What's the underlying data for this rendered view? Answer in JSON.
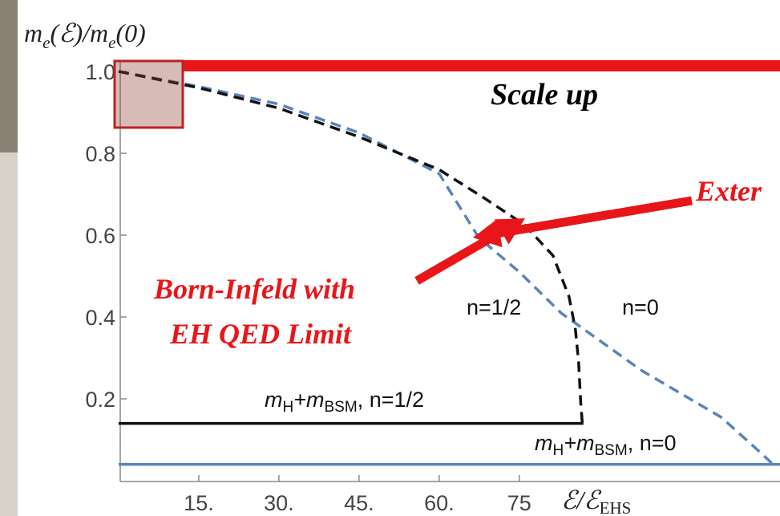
{
  "chart_data": {
    "type": "line",
    "y_label": {
      "base": "m",
      "sub": "e",
      "rest": "(ℰ)/m",
      "sub2": "e",
      "end": "(0)"
    },
    "x_label": {
      "base": "ℰ/ℰ",
      "sub": "EHS"
    },
    "xlim": [
      0,
      123.8
    ],
    "ylim": [
      0,
      1.05
    ],
    "xticks": [
      {
        "value": 15,
        "label": "15."
      },
      {
        "value": 30,
        "label": "30."
      },
      {
        "value": 45,
        "label": "45."
      },
      {
        "value": 60,
        "label": "60."
      },
      {
        "value": 75,
        "label": "75"
      }
    ],
    "yticks": [
      {
        "value": 1.0,
        "label": "1.0"
      },
      0.8,
      0.6,
      0.4,
      0.2
    ],
    "series": [
      {
        "color": "#5b84b8",
        "dashed": true,
        "x": [
          0,
          15,
          30,
          45,
          60,
          67.4,
          75,
          82.8,
          97.8,
          112.8,
          120.3,
          122.5
        ],
        "values": [
          1.0,
          0.963,
          0.92,
          0.85,
          0.75,
          0.594,
          0.51,
          0.41,
          0.27,
          0.155,
          0.067,
          0.04
        ]
      },
      {
        "color": "#111111",
        "dashed": true,
        "x": [
          0,
          15,
          30,
          45,
          60,
          68.5,
          76,
          81.3,
          84.3,
          85.5,
          86.1,
          86.5,
          86.8
        ],
        "values": [
          1.0,
          0.96,
          0.91,
          0.84,
          0.76,
          0.69,
          0.625,
          0.55,
          0.45,
          0.37,
          0.29,
          0.19,
          0.14
        ]
      },
      {
        "color": "#111111",
        "dashed": false,
        "x": [
          0,
          87
        ],
        "values": [
          0.14,
          0.14
        ]
      },
      {
        "color": "#5b84b8",
        "dashed": false,
        "x": [
          0,
          123.8
        ],
        "values": [
          0.04,
          0.04
        ]
      }
    ],
    "annotations": {
      "scale_up": "Scale up",
      "extension": "Exter",
      "born_infeld": [
        "Born-Infeld with",
        "EH QED Limit"
      ],
      "n_half": "n=1/2",
      "n_zero": "n=0",
      "threshold_half": {
        "m1": "m",
        "s1": "H",
        "m2": "+m",
        "s2": "BSM",
        "rest": ", n=1/2"
      },
      "threshold_zero": {
        "m1": "m",
        "s1": "H",
        "m2": "+m",
        "s2": "BSM",
        "rest": ", n=0"
      }
    }
  }
}
